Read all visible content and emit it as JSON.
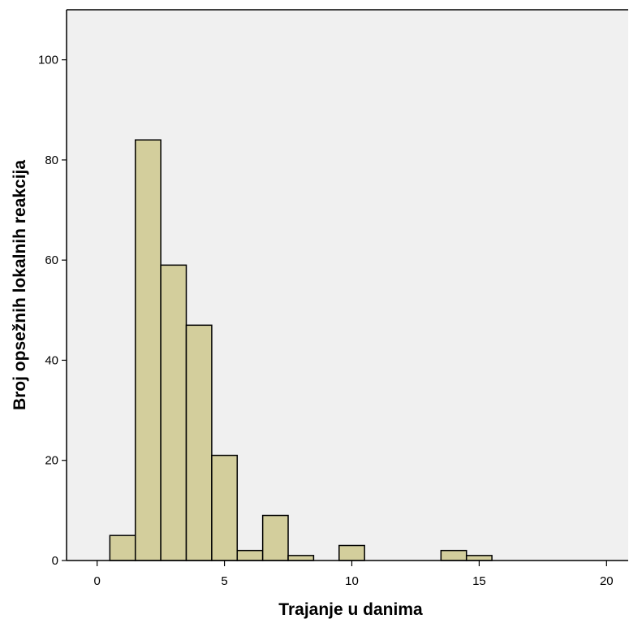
{
  "chart_data": {
    "type": "bar",
    "xlabel": "Trajanje u danima",
    "ylabel": "Broj opsežnih lokalnih reakcija",
    "xlim": [
      -1.2,
      20.85
    ],
    "ylim": [
      0,
      110
    ],
    "xticks": [
      0,
      5,
      10,
      15,
      20
    ],
    "yticks": [
      0,
      20,
      40,
      60,
      80,
      100
    ],
    "bin_width": 1,
    "bins": [
      {
        "center": 1,
        "value": 5
      },
      {
        "center": 2,
        "value": 84
      },
      {
        "center": 3,
        "value": 59
      },
      {
        "center": 4,
        "value": 47
      },
      {
        "center": 5,
        "value": 21
      },
      {
        "center": 6,
        "value": 2
      },
      {
        "center": 7,
        "value": 9
      },
      {
        "center": 8,
        "value": 1
      },
      {
        "center": 10,
        "value": 3
      },
      {
        "center": 14,
        "value": 2
      },
      {
        "center": 15,
        "value": 1
      }
    ],
    "grid": false,
    "colors": {
      "plot_background": "#f0f0f0",
      "bar_fill": "#d3ce9c",
      "bar_stroke": "#000000",
      "axis": "#000000"
    }
  }
}
